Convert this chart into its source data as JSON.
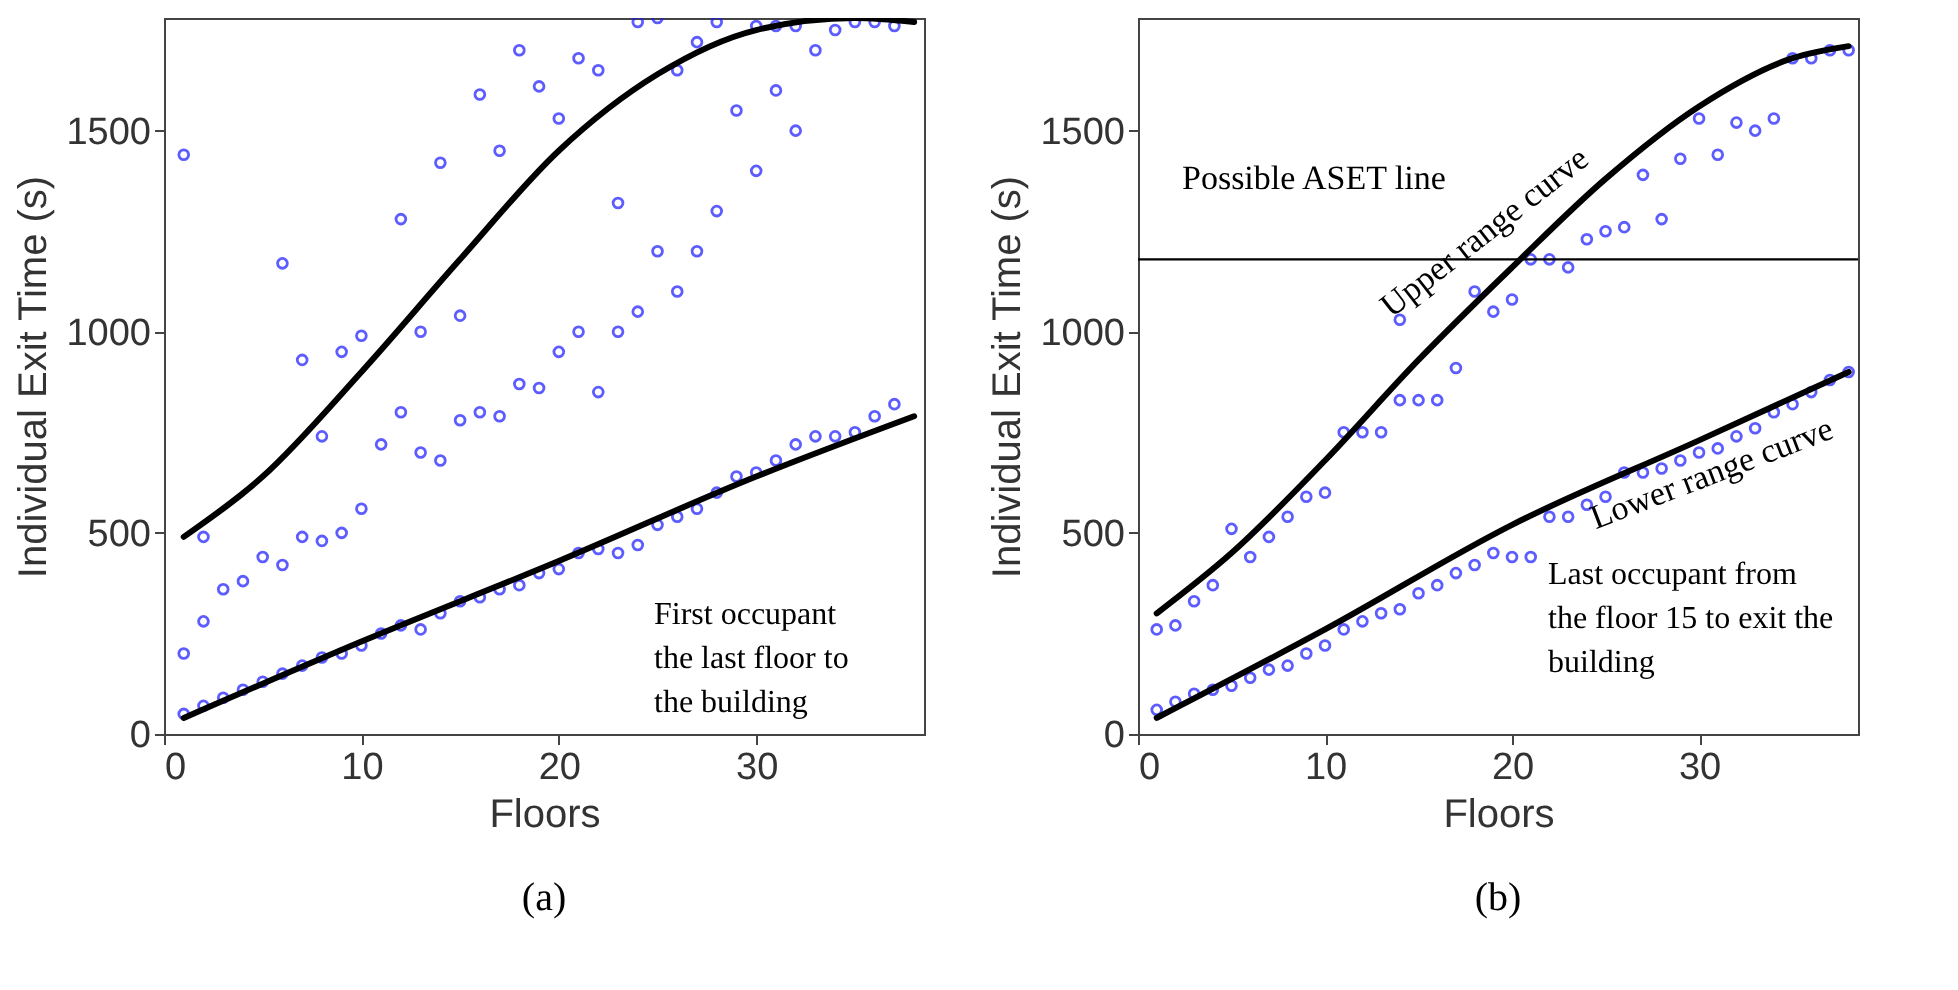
{
  "chart_data": [
    {
      "type": "scatter",
      "title": "(a)",
      "xlabel": "Floors",
      "ylabel": "Individual Exit Time (s)",
      "xlim": [
        0,
        38.5
      ],
      "ylim": [
        0,
        1780
      ],
      "xticks": [
        0,
        10,
        20,
        30
      ],
      "yticks": [
        0,
        500,
        1000,
        1500
      ],
      "grid": false,
      "marker": "circle",
      "annotations": [
        "First occupant\nthe last floor to\nthe building"
      ],
      "series": [
        {
          "color": "#1a1aff",
          "x": [
            1,
            1,
            1,
            2,
            2,
            2,
            3,
            3,
            4,
            4,
            5,
            5,
            6,
            6,
            6,
            7,
            7,
            7,
            8,
            8,
            8,
            9,
            9,
            9,
            10,
            10,
            10,
            11,
            11,
            12,
            12,
            12,
            13,
            13,
            13,
            14,
            14,
            14,
            15,
            15,
            15,
            16,
            16,
            16,
            17,
            17,
            17,
            18,
            18,
            18,
            19,
            19,
            19,
            20,
            20,
            20,
            21,
            21,
            21,
            22,
            22,
            22,
            23,
            23,
            23,
            24,
            24,
            24,
            25,
            25,
            25,
            26,
            26,
            26,
            27,
            27,
            27,
            28,
            28,
            28,
            29,
            29,
            30,
            30,
            30,
            31,
            31,
            31,
            32,
            32,
            32,
            33,
            33,
            34,
            34,
            35,
            35,
            36,
            36,
            37,
            37
          ],
          "values": [
            50,
            200,
            1440,
            70,
            280,
            490,
            90,
            360,
            110,
            380,
            130,
            440,
            150,
            420,
            1170,
            170,
            490,
            930,
            190,
            480,
            740,
            200,
            500,
            950,
            220,
            560,
            990,
            250,
            720,
            270,
            800,
            1280,
            260,
            700,
            1000,
            300,
            680,
            1420,
            330,
            780,
            1040,
            340,
            800,
            1590,
            360,
            790,
            1450,
            370,
            870,
            1700,
            400,
            860,
            1610,
            410,
            950,
            1530,
            450,
            1000,
            1680,
            460,
            850,
            1650,
            450,
            1000,
            1320,
            470,
            1050,
            1770,
            520,
            1200,
            1780,
            540,
            1100,
            1650,
            560,
            1200,
            1720,
            600,
            1300,
            1770,
            640,
            1550,
            650,
            1400,
            1760,
            680,
            1600,
            1760,
            720,
            1500,
            1760,
            740,
            1700,
            740,
            1750,
            750,
            1770,
            790,
            1770,
            820,
            1760
          ]
        },
        {
          "type": "line",
          "marker": "none",
          "color": "#000000",
          "x": [
            1,
            5,
            10,
            15,
            20,
            25,
            30,
            35,
            38
          ],
          "values": [
            490,
            640,
            900,
            1180,
            1450,
            1640,
            1750,
            1780,
            1770
          ]
        },
        {
          "type": "line",
          "marker": "none",
          "color": "#000000",
          "x": [
            1,
            10,
            20,
            30,
            38
          ],
          "values": [
            40,
            230,
            430,
            640,
            790
          ]
        }
      ]
    },
    {
      "type": "scatter",
      "title": "(b)",
      "xlabel": "Floors",
      "ylabel": "Individual Exit Time (s)",
      "xlim": [
        0,
        38.5
      ],
      "ylim": [
        0,
        1780
      ],
      "xticks": [
        0,
        10,
        20,
        30
      ],
      "yticks": [
        0,
        500,
        1000,
        1500
      ],
      "grid": false,
      "marker": "circle",
      "annotations": [
        "Last occupant from\nthe floor 15 to exit the\nbuilding"
      ],
      "ref_lines": [
        {
          "axis": "y",
          "value": 1180,
          "label": "Possible ASET line",
          "color": "#000000"
        }
      ],
      "series": [
        {
          "color": "#1a1aff",
          "x": [
            1,
            1,
            2,
            2,
            3,
            3,
            4,
            4,
            5,
            5,
            6,
            6,
            7,
            7,
            8,
            8,
            9,
            9,
            10,
            10,
            11,
            11,
            12,
            12,
            13,
            13,
            14,
            14,
            14,
            15,
            15,
            16,
            16,
            17,
            17,
            18,
            18,
            19,
            19,
            20,
            20,
            21,
            21,
            22,
            22,
            23,
            23,
            24,
            24,
            25,
            25,
            26,
            26,
            27,
            27,
            28,
            28,
            29,
            29,
            30,
            30,
            31,
            31,
            32,
            32,
            33,
            33,
            34,
            34,
            35,
            35,
            36,
            36,
            37,
            37,
            38,
            38
          ],
          "values": [
            60,
            260,
            80,
            270,
            100,
            330,
            110,
            370,
            120,
            510,
            140,
            440,
            160,
            490,
            170,
            540,
            200,
            590,
            220,
            600,
            260,
            750,
            280,
            750,
            300,
            750,
            310,
            830,
            1030,
            350,
            830,
            370,
            830,
            400,
            910,
            420,
            1100,
            450,
            1050,
            440,
            1080,
            440,
            1180,
            540,
            1180,
            540,
            1160,
            570,
            1230,
            590,
            1250,
            650,
            1260,
            650,
            1390,
            660,
            1280,
            680,
            1430,
            700,
            1530,
            710,
            1440,
            740,
            1520,
            760,
            1500,
            800,
            1530,
            820,
            1680,
            850,
            1680,
            880,
            1700,
            900,
            1700
          ]
        },
        {
          "type": "line",
          "marker": "none",
          "name": "Upper range curve",
          "color": "#000000",
          "x": [
            1,
            5,
            10,
            15,
            20,
            25,
            30,
            35,
            38
          ],
          "values": [
            300,
            450,
            680,
            930,
            1160,
            1380,
            1560,
            1680,
            1710
          ]
        },
        {
          "type": "line",
          "marker": "none",
          "name": "Lower range curve",
          "color": "#000000",
          "x": [
            1,
            10,
            20,
            30,
            38
          ],
          "values": [
            40,
            260,
            520,
            730,
            900
          ]
        }
      ]
    }
  ]
}
